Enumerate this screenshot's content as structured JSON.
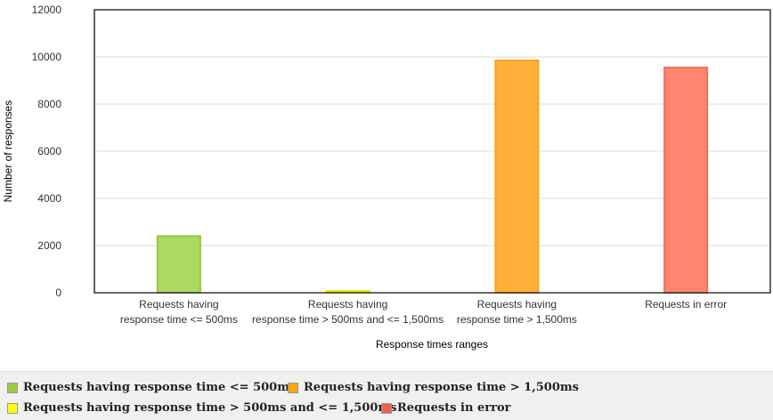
{
  "chart_data": {
    "type": "bar",
    "categories": [
      [
        "Requests having",
        "response time <= 500ms"
      ],
      [
        "Requests having",
        "response time > 500ms and <= 1,500ms"
      ],
      [
        "Requests having",
        "response time > 1,500ms"
      ],
      [
        "Requests in error"
      ]
    ],
    "values": [
      2400,
      70,
      9850,
      9550
    ],
    "colors": [
      "#add862",
      "#ffff00",
      "#ffb03a",
      "#ff8570"
    ],
    "stroke_colors": [
      "#90c93a",
      "#e6e600",
      "#f5a31a",
      "#f0705a"
    ],
    "xlabel": "Response times ranges",
    "ylabel": "Number of responses",
    "ylim": [
      0,
      12000
    ],
    "yticks": [
      "0",
      "2000",
      "4000",
      "6000",
      "8000",
      "10000",
      "12000"
    ],
    "grid": true,
    "legend_placement": "bottom"
  },
  "legend": {
    "items": [
      {
        "label": "Requests having response time <= 500ms",
        "color": "#9ccc3c"
      },
      {
        "label": "Requests having response time > 1,500ms",
        "color": "#ffa500"
      },
      {
        "label": "Requests having response time > 500ms and <= 1,500ms",
        "color": "#ffff00"
      },
      {
        "label": "Requests in error",
        "color": "#f0604a"
      }
    ]
  }
}
